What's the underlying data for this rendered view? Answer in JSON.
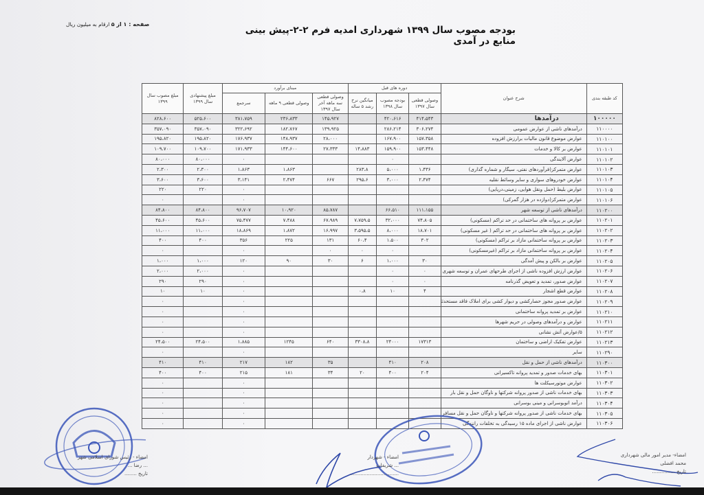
{
  "header": {
    "title": "بودجه مصوب سال ۱۳۹۹ شهرداری امدیه فرم ۲-۲-پیش بینی منابع در آمدی",
    "page_label": "صفحه : ۱ از ۵",
    "unit_note": "ارقام به میلیون ریال"
  },
  "table": {
    "group_headers": {
      "previous_periods": "دوره های قبل",
      "estimate_basis": "مبنای برآورد"
    },
    "columns": [
      "کد طبقه بندی",
      "شرح عنوان",
      "وصولی قطعی سال ۱۳۹۷",
      "بودجه مصوب سال ۱۳۹۸",
      "میانگین نرخ رشد ۵ ساله",
      "وصولی قطعی سه ماهه آخر سال ۱۳۹۷",
      "وصولی قطعی ۹ ماهه",
      "سرجمع",
      "مبلغ پیشنهادی سال ۱۳۹۹",
      "مبلغ مصوب سال ۱۳۹۹"
    ],
    "rows": [
      [
        "۱۰۰۰۰۰",
        "درآمدها",
        "۴۱۴،۵۴۳",
        "۴۲۰،۶۱۶",
        "",
        "۱۴۵،۹۲۷",
        "۲۳۶،۸۳۳",
        "۳۸۱،۷۵۹",
        "۵۲۵،۶۰۰",
        "۸۲۸،۶۰۰"
      ],
      [
        "۱۱۰۰۰۰",
        "درآمدهای ناشی از عوارض عمومی",
        "۳۰۶،۲۷۴",
        "۲۸۶،۲۱۴",
        "",
        "۱۳۹،۹۲۵",
        "۱۸۲،۷۶۷",
        "۳۲۲،۶۹۲",
        "۳۵۷،۰۹۰",
        "۳۵۷،۰۹۰"
      ],
      [
        "۱۱۰۱۰۰",
        "عوارض موضوع قانون مالیات برارزش افزوده",
        "۱۵۷،۳۵۸",
        "۱۶۷،۹۰۰",
        "",
        "۲۸،۰۰۰",
        "۱۴۸،۹۳۷",
        "۱۷۶،۹۳۷",
        "۱۹۵،۸۲۰",
        "۱۹۵،۸۲۰"
      ],
      [
        "۱۱۰۱۰۱",
        "عوارض بر کالا و خدمات",
        "۱۵۳،۴۴۸",
        "۱۵۹،۹۰۰",
        "۱۴،۸۸۳",
        "۲۷،۳۳۳",
        "۱۴۴،۶۰۰",
        "۱۷۱،۹۳۳",
        "۱۰۹،۷۰۰",
        "۱۰۹،۷۰۰"
      ],
      [
        "۱۱۰۱۰۲",
        "عوارض آلایندگی",
        "",
        "۰",
        "",
        "",
        "",
        "۰",
        "۸۰،۰۰۰",
        "۸۰،۰۰۰"
      ],
      [
        "۱۱۰۱۰۳",
        "عوارض متمرکز(فرآوردهای نفتی، سیگار و شماره گذاری)",
        "۱،۴۳۶",
        "۵،۰۰۰",
        "۲۸۳،۸",
        "",
        "۱،۸۶۳",
        "۱،۸۶۳",
        "۲،۳۰۰",
        "۲،۳۰۰"
      ],
      [
        "۱۱۰۱۰۴",
        "عوارض خودروهای سواری و سایر وسائط نقلیه",
        "۲،۴۷۴",
        "۳،۰۰۰",
        "۲۹۵،۶",
        "۶۶۷",
        "۲،۴۷۴",
        "۳،۱۴۱",
        "۳،۶۰۰",
        "۳،۶۰۰"
      ],
      [
        "۱۱۰۱۰۵",
        "عوارض بلیط (حمل ونقل هوایی، زمینی،دریایی)",
        "",
        "",
        "",
        "",
        "",
        "۰",
        "۲۲۰",
        "۲۲۰"
      ],
      [
        "۱۱۰۱۰۶",
        "عوارض متمرکز(دوازده در هزار گمرکی)",
        "",
        "",
        "",
        "",
        "",
        "۰",
        "",
        "۰"
      ],
      [
        "۱۱۰۲۰۰",
        "درآمدهای ناشی از توسعه شهر",
        "۱۱۱،۱۵۵",
        "۶۶،۵۱۰",
        "",
        "۸۵،۷۸۷",
        "۱۰،۹۲۰",
        "۹۶،۷۰۷",
        "۸۴،۸۰۰",
        "۸۴،۸۰۰"
      ],
      [
        "۱۱۰۲۰۱",
        "عوارض بر پروانه های ساختمانی در حد تراکم (مسکونی)",
        "۷۴،۸۰۵",
        "۳۲،۰۰۰",
        "۷،۷۵۹،۵",
        "۶۷،۹۸۹",
        "۷،۴۸۸",
        "۷۵،۴۷۷",
        "۴۵،۶۰۰",
        "۴۵،۶۰۰"
      ],
      [
        "۱۱۰۲۰۲",
        "عوارض بر پروانه های ساختمانی در حد تراکم ( غیر مسکونی)",
        "۱۸،۷۰۱",
        "۸،۰۰۰",
        "۳،۵۹۵،۵",
        "۱۶،۹۹۷",
        "۱،۸۷۲",
        "۱۸،۸۶۹",
        "۱۱،۰۰۰",
        "۱۱،۰۰۰"
      ],
      [
        "۱۱۰۲۰۳",
        "عوارض بر پروانه ساختمانی مازاد بر تراکم (مسکونی)",
        "۳۰۲",
        "۱،۵۰۰",
        "۶۰،۴",
        "۱۳۱",
        "۲۲۵",
        "۳۵۶",
        "۴۰۰",
        "۴۰۰"
      ],
      [
        "۱۱۰۲۰۴",
        "عوارض بر پروانه ساختمانی مازاد بر تراکم (غیرمسکونی)",
        "",
        "۰",
        "۰",
        "۰",
        "",
        "۰",
        "",
        "۰"
      ],
      [
        "۱۱۰۲۰۵",
        "عوارض بر بالکن و پیش آمدگی",
        "۳۰",
        "۱،۰۰۰",
        "۶",
        "۳۰",
        "۹۰",
        "۱۲۰",
        "۱،۰۰۰",
        "۱،۰۰۰"
      ],
      [
        "۱۱۰۲۰۶",
        "عوارض ارزش افزوده ناشی از اجرای طرحهای عمران و توسعه شهری",
        "۰",
        "۰",
        "",
        "",
        "",
        "۰",
        "۲،۰۰۰",
        "۲،۰۰۰"
      ],
      [
        "۱۱۰۲۰۷",
        "عوارض صدور، تمدید و تعویض گذرنامه",
        "۰",
        "۰",
        "",
        "",
        "",
        "۰",
        "۲۹۰",
        "۲۹۰"
      ],
      [
        "۱۱۰۲۰۸",
        "عوارض قطع اشجار",
        "۴",
        "۱۰",
        "۰،۸",
        "",
        "",
        "۰",
        "۱۰",
        "۱۰"
      ],
      [
        "۱۱۰۲۰۹",
        "عوارض صدور مجوز حصارکشی و دیوار کشی برای املاک فاقد مستحدثات",
        "",
        "",
        "",
        "",
        "",
        "۰",
        "",
        "۰"
      ],
      [
        "۱۱۰۲۱۰",
        "عوارض بر تمدید پروانه ساختمانی",
        "",
        "",
        "",
        "",
        "",
        "۰",
        "",
        "۰"
      ],
      [
        "۱۱۰۲۱۱",
        "عوارض و درآمدهای وصولی در حریم شهرها",
        "",
        "",
        "",
        "",
        "",
        "۰",
        "",
        "۰"
      ],
      [
        "۱۱۰۲۱۲",
        "۵/عوارض آتش نشانی",
        "",
        "",
        "",
        "",
        "",
        "۰",
        "",
        "۰"
      ],
      [
        "۱۱۰۲۱۳",
        "عوارض تفکیک اراضی و ساختمان",
        "۱۷۳۱۳",
        "۲۴۰۰۰",
        "۳۳۰۸،۸",
        "۶۴۰",
        "۱۲۴۵",
        "۱،۸۸۵",
        "۲۴،۵۰۰",
        "۲۴،۵۰۰"
      ],
      [
        "۱۱۰۲۹۰",
        "سایر",
        "",
        "",
        "",
        "",
        "",
        "۰",
        "",
        "۰"
      ],
      [
        "۱۱۰۳۰۰",
        "درآمدهای ناشی از حمل و نقل",
        "۲۰۸",
        "۴۱۰",
        "",
        "۳۵",
        "۱۸۲",
        "۲۱۷",
        "۴۱۰",
        "۴۱۰"
      ],
      [
        "۱۱۰۳۰۱",
        "بهای خدمات صدور و تمدید پروانه تاکسیرانی",
        "۲۰۴",
        "۴۰۰",
        "۲۰",
        "۳۴",
        "۱۸۱",
        "۲۱۵",
        "۴۰۰",
        "۴۰۰"
      ],
      [
        "۱۱۰۳۰۲",
        "عوارض موتورسیکلت ها",
        "",
        "",
        "",
        "",
        "",
        "۰",
        "",
        "۰"
      ],
      [
        "۱۱۰۳۰۳",
        "بهای خدمات ناشی از صدور پروانه شرکتها و ناوگان حمل و نقل بار",
        "",
        "",
        "",
        "",
        "",
        "۰",
        "",
        "۰"
      ],
      [
        "۱۱۰۳۰۴",
        "درآمد اتوبوسرانی و مینی بوسرانی",
        "",
        "",
        "",
        "",
        "",
        "۰",
        "",
        "۰"
      ],
      [
        "۱۱۰۳۰۵",
        "بهای خدمات ناشی از صدور پروانه شرکتها و ناوگان حمل و نقل مسافر",
        "",
        "",
        "",
        "",
        "",
        "۰",
        "",
        "۰"
      ],
      [
        "۱۱۰۳۰۶",
        "عوارض ناشی از اجرای ماده ۱۵ رسیدگی به تخلفات رانندگی",
        "",
        "",
        "",
        "",
        "",
        "۰",
        "",
        "۰"
      ]
    ],
    "highlight_rows": [
      0,
      9,
      24
    ]
  },
  "signatures": {
    "finance": {
      "role": "امضاء- مدیر امور مالی شهرداری",
      "name": "محمد افضلی",
      "date": "تاریخ ..............."
    },
    "mayor": {
      "role": "امضاء - شهردار",
      "name": "... شریفات",
      "date": "................................"
    },
    "council": {
      "role": "امضاء - رئیس شورای اسلامی شهر",
      "name": "... رضا ...",
      "date": "تاریخ ........"
    }
  },
  "stamps": {
    "council_stamp": "شورای اسلامی شهر امیدیه - استان خوزستان",
    "municipality_stamp": "جمهوری اسلامی ایران - وزارت کشور - استانداری خوزستان - شهرداری امیدیه - تاسیس"
  },
  "colors": {
    "stamp_ink": "#3a55b8",
    "paper": "#f3f3f5",
    "highlight_row": "#e2e2e4"
  }
}
